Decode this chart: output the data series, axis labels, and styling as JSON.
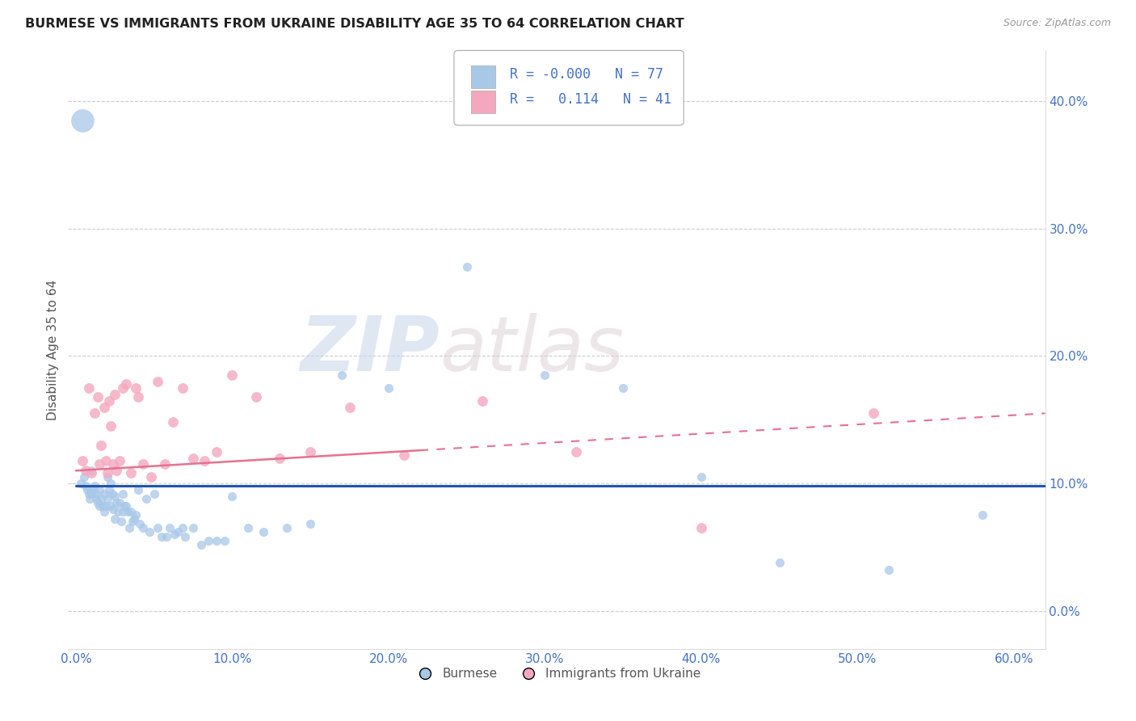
{
  "title": "BURMESE VS IMMIGRANTS FROM UKRAINE DISABILITY AGE 35 TO 64 CORRELATION CHART",
  "source": "Source: ZipAtlas.com",
  "ylabel": "Disability Age 35 to 64",
  "xlim": [
    -0.005,
    0.62
  ],
  "ylim": [
    -0.03,
    0.44
  ],
  "yticks": [
    0.0,
    0.1,
    0.2,
    0.3,
    0.4
  ],
  "xticks": [
    0.0,
    0.1,
    0.2,
    0.3,
    0.4,
    0.5,
    0.6
  ],
  "burmese_R": "-0.000",
  "burmese_N": 77,
  "ukraine_R": "0.114",
  "ukraine_N": 41,
  "burmese_color": "#a8c8e8",
  "ukraine_color": "#f4a8c0",
  "burmese_line_color": "#2255aa",
  "ukraine_line_color": "#e87090",
  "watermark_zip": "ZIP",
  "watermark_atlas": "atlas",
  "burmese_x": [
    0.003,
    0.005,
    0.006,
    0.007,
    0.008,
    0.009,
    0.01,
    0.01,
    0.011,
    0.012,
    0.013,
    0.013,
    0.014,
    0.015,
    0.015,
    0.016,
    0.017,
    0.018,
    0.018,
    0.019,
    0.02,
    0.02,
    0.021,
    0.022,
    0.022,
    0.023,
    0.024,
    0.025,
    0.025,
    0.026,
    0.027,
    0.028,
    0.029,
    0.03,
    0.03,
    0.031,
    0.032,
    0.033,
    0.034,
    0.035,
    0.036,
    0.037,
    0.038,
    0.04,
    0.041,
    0.043,
    0.045,
    0.047,
    0.05,
    0.052,
    0.055,
    0.058,
    0.06,
    0.063,
    0.065,
    0.068,
    0.07,
    0.075,
    0.08,
    0.085,
    0.09,
    0.095,
    0.1,
    0.11,
    0.12,
    0.135,
    0.15,
    0.17,
    0.2,
    0.25,
    0.3,
    0.35,
    0.4,
    0.45,
    0.52,
    0.58,
    0.004
  ],
  "burmese_y": [
    0.1,
    0.105,
    0.098,
    0.095,
    0.092,
    0.088,
    0.11,
    0.092,
    0.095,
    0.098,
    0.092,
    0.088,
    0.085,
    0.095,
    0.082,
    0.088,
    0.082,
    0.092,
    0.078,
    0.082,
    0.105,
    0.088,
    0.095,
    0.1,
    0.082,
    0.092,
    0.08,
    0.09,
    0.072,
    0.085,
    0.078,
    0.085,
    0.07,
    0.092,
    0.078,
    0.082,
    0.082,
    0.078,
    0.065,
    0.078,
    0.07,
    0.072,
    0.075,
    0.095,
    0.068,
    0.065,
    0.088,
    0.062,
    0.092,
    0.065,
    0.058,
    0.058,
    0.065,
    0.06,
    0.062,
    0.065,
    0.058,
    0.065,
    0.052,
    0.055,
    0.055,
    0.055,
    0.09,
    0.065,
    0.062,
    0.065,
    0.068,
    0.185,
    0.175,
    0.27,
    0.185,
    0.175,
    0.105,
    0.038,
    0.032,
    0.075,
    0.385
  ],
  "ukraine_x": [
    0.004,
    0.006,
    0.008,
    0.01,
    0.012,
    0.014,
    0.015,
    0.016,
    0.018,
    0.019,
    0.02,
    0.021,
    0.022,
    0.024,
    0.025,
    0.026,
    0.028,
    0.03,
    0.032,
    0.035,
    0.038,
    0.04,
    0.043,
    0.048,
    0.052,
    0.057,
    0.062,
    0.068,
    0.075,
    0.082,
    0.09,
    0.1,
    0.115,
    0.13,
    0.15,
    0.175,
    0.21,
    0.26,
    0.32,
    0.4,
    0.51
  ],
  "ukraine_y": [
    0.118,
    0.11,
    0.175,
    0.108,
    0.155,
    0.168,
    0.115,
    0.13,
    0.16,
    0.118,
    0.108,
    0.165,
    0.145,
    0.115,
    0.17,
    0.11,
    0.118,
    0.175,
    0.178,
    0.108,
    0.175,
    0.168,
    0.115,
    0.105,
    0.18,
    0.115,
    0.148,
    0.175,
    0.12,
    0.118,
    0.125,
    0.185,
    0.168,
    0.12,
    0.125,
    0.16,
    0.122,
    0.165,
    0.125,
    0.065,
    0.155
  ],
  "burmese_trend_x": [
    0.0,
    0.62
  ],
  "burmese_trend_y": [
    0.098,
    0.098
  ],
  "ukraine_trend_x": [
    0.0,
    0.62
  ],
  "ukraine_trend_y": [
    0.11,
    0.155
  ]
}
